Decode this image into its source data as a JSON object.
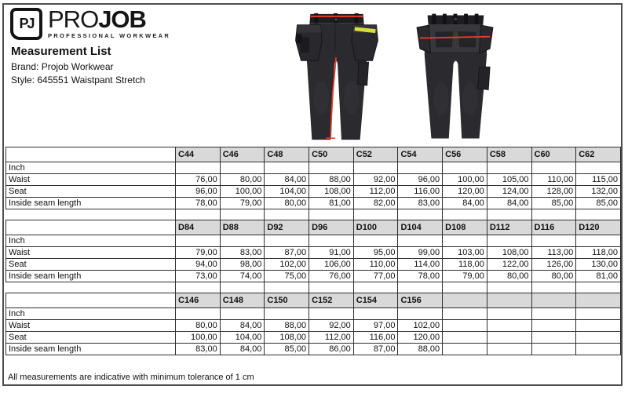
{
  "logo": {
    "monogram": "PJ",
    "brand_pro": "PRO",
    "brand_job": "JOB",
    "tagline": "PROFESSIONAL WORKWEAR"
  },
  "header": {
    "title": "Measurement List",
    "brand_line": "Brand: Projob Workwear",
    "style_line": "Style: 645551 Waistpant Stretch"
  },
  "tables": [
    {
      "sizes": [
        "C44",
        "C46",
        "C48",
        "C50",
        "C52",
        "C54",
        "C56",
        "C58",
        "C60",
        "C62"
      ],
      "unit_label": "Inch",
      "rows": [
        {
          "label": "Waist",
          "values": [
            "76,00",
            "80,00",
            "84,00",
            "88,00",
            "92,00",
            "96,00",
            "100,00",
            "105,00",
            "110,00",
            "115,00"
          ]
        },
        {
          "label": "Seat",
          "values": [
            "96,00",
            "100,00",
            "104,00",
            "108,00",
            "112,00",
            "116,00",
            "120,00",
            "124,00",
            "128,00",
            "132,00"
          ]
        },
        {
          "label": "Inside seam length",
          "values": [
            "78,00",
            "79,00",
            "80,00",
            "81,00",
            "82,00",
            "83,00",
            "84,00",
            "84,00",
            "85,00",
            "85,00"
          ]
        }
      ]
    },
    {
      "sizes": [
        "D84",
        "D88",
        "D92",
        "D96",
        "D100",
        "D104",
        "D108",
        "D112",
        "D116",
        "D120"
      ],
      "unit_label": "Inch",
      "rows": [
        {
          "label": "Waist",
          "values": [
            "79,00",
            "83,00",
            "87,00",
            "91,00",
            "95,00",
            "99,00",
            "103,00",
            "108,00",
            "113,00",
            "118,00"
          ]
        },
        {
          "label": "Seat",
          "values": [
            "94,00",
            "98,00",
            "102,00",
            "106,00",
            "110,00",
            "114,00",
            "118,00",
            "122,00",
            "126,00",
            "130,00"
          ]
        },
        {
          "label": "Inside seam length",
          "values": [
            "73,00",
            "74,00",
            "75,00",
            "76,00",
            "77,00",
            "78,00",
            "79,00",
            "80,00",
            "80,00",
            "81,00"
          ]
        }
      ]
    },
    {
      "sizes": [
        "C146",
        "C148",
        "C150",
        "C152",
        "C154",
        "C156",
        "",
        "",
        "",
        ""
      ],
      "unit_label": "Inch",
      "rows": [
        {
          "label": "Waist",
          "values": [
            "80,00",
            "84,00",
            "88,00",
            "92,00",
            "97,00",
            "102,00",
            "",
            "",
            "",
            ""
          ]
        },
        {
          "label": "Seat",
          "values": [
            "100,00",
            "104,00",
            "108,00",
            "112,00",
            "116,00",
            "120,00",
            "",
            "",
            "",
            ""
          ]
        },
        {
          "label": "Inside seam length",
          "values": [
            "83,00",
            "84,00",
            "85,00",
            "86,00",
            "87,00",
            "88,00",
            "",
            "",
            "",
            ""
          ]
        }
      ]
    }
  ],
  "footer": {
    "note": "All measurements are indicative with minimum tolerance of 1 cm"
  },
  "colors": {
    "accent_red": "#e53c25",
    "header_gray": "#d9d9d9",
    "stripe_yellow": "#d6de3a",
    "grid_border": "#2e2e2e",
    "page_border": "#4d4d4d"
  }
}
